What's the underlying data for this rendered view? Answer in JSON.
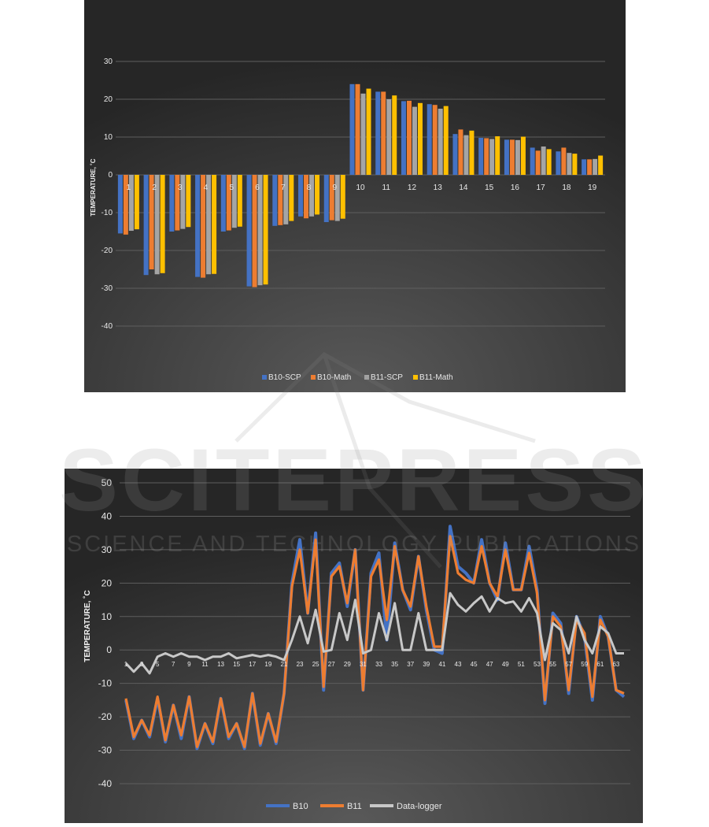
{
  "chart_data": [
    {
      "type": "bar",
      "ylabel": "TEMPERATURE, ˚C",
      "ylim": [
        -50,
        30
      ],
      "yticks": [
        30,
        20,
        10,
        0,
        -10,
        -20,
        -30,
        -40
      ],
      "categories": [
        "1",
        "2",
        "3",
        "4",
        "5",
        "6",
        "7",
        "8",
        "9",
        "10",
        "11",
        "12",
        "13",
        "14",
        "15",
        "16",
        "17",
        "18",
        "19"
      ],
      "series": [
        {
          "name": "B10-SCP",
          "color": "#4472c4",
          "values": [
            -15.5,
            -26.5,
            -15,
            -27,
            -15,
            -29.5,
            -13.5,
            -11,
            -12.5,
            24,
            22,
            19.5,
            18.7,
            10.8,
            9.8,
            9.3,
            7.2,
            6.2,
            4.1
          ]
        },
        {
          "name": "B10-Math",
          "color": "#ed7d31",
          "values": [
            -15.8,
            -25,
            -14.7,
            -27.2,
            -14.7,
            -29.7,
            -13.3,
            -11.5,
            -12,
            24,
            22,
            19.6,
            18.5,
            12,
            9.7,
            9.3,
            6.4,
            7.2,
            4.1
          ]
        },
        {
          "name": "B11-SCP",
          "color": "#a5a5a5",
          "values": [
            -14.8,
            -26.3,
            -14.3,
            -26.3,
            -14,
            -29.2,
            -13.1,
            -11,
            -12.2,
            21.5,
            20,
            18,
            17.5,
            10.5,
            9.5,
            9.2,
            7.5,
            5.8,
            4.2
          ]
        },
        {
          "name": "B11-Math",
          "color": "#ffc000",
          "values": [
            -14.4,
            -26,
            -13.8,
            -26.2,
            -13.7,
            -29,
            -12.2,
            -10.5,
            -11.6,
            22.8,
            21,
            19,
            18.2,
            11.7,
            10.2,
            10.1,
            6.8,
            5.6,
            5.1
          ]
        }
      ],
      "legend": "bottom"
    },
    {
      "type": "line",
      "ylabel": "TEMPERATURE, ˚C",
      "ylim": [
        -40,
        50
      ],
      "yticks": [
        50,
        40,
        30,
        20,
        10,
        0,
        -10,
        -20,
        -30,
        -40
      ],
      "x": [
        1,
        2,
        3,
        4,
        5,
        6,
        7,
        8,
        9,
        10,
        11,
        12,
        13,
        14,
        15,
        16,
        17,
        18,
        19,
        20,
        21,
        22,
        23,
        24,
        25,
        26,
        27,
        28,
        29,
        30,
        31,
        32,
        33,
        34,
        35,
        36,
        37,
        38,
        39,
        40,
        41,
        42,
        43,
        44,
        45,
        46,
        47,
        48,
        49,
        50,
        51,
        52,
        53,
        54,
        55,
        56,
        57,
        58,
        59,
        60,
        61,
        62,
        63,
        64
      ],
      "xtick_labels": [
        "1",
        "3",
        "5",
        "7",
        "9",
        "11",
        "13",
        "15",
        "17",
        "19",
        "21",
        "23",
        "25",
        "27",
        "29",
        "31",
        "33",
        "35",
        "37",
        "39",
        "41",
        "43",
        "45",
        "47",
        "49",
        "51",
        "53",
        "55",
        "57",
        "59",
        "61",
        "63"
      ],
      "series": [
        {
          "name": "B10",
          "color": "#4472c4",
          "values": [
            -15,
            -26.5,
            -21,
            -26,
            -14.5,
            -27.5,
            -16.5,
            -26.5,
            -14,
            -29.5,
            -22,
            -28,
            -14.5,
            -26.5,
            -22,
            -29.5,
            -13,
            -28.5,
            -19,
            -28,
            -13,
            20,
            33,
            11,
            35,
            -12,
            23,
            26,
            13,
            30,
            -12,
            23,
            29,
            3,
            32,
            18,
            12,
            28,
            12,
            0,
            -1,
            37,
            25,
            23,
            20,
            33,
            20,
            15,
            32,
            18,
            18,
            31,
            18,
            -16,
            11,
            8,
            -13,
            10,
            4,
            -15,
            10,
            4,
            -12,
            -14
          ]
        },
        {
          "name": "B11",
          "color": "#ed7d31",
          "values": [
            -14.5,
            -26,
            -21,
            -25.5,
            -14,
            -27,
            -16.5,
            -25.5,
            -14,
            -29,
            -22,
            -27.5,
            -14.5,
            -26,
            -22,
            -29,
            -13,
            -28,
            -19,
            -27.5,
            -13,
            19,
            30,
            11,
            33,
            -11,
            22,
            25,
            14,
            30,
            -12,
            22,
            27,
            9,
            31,
            18,
            13,
            28,
            13,
            1,
            1,
            34,
            23,
            21,
            20,
            31,
            20,
            16,
            30,
            18,
            18,
            29,
            17,
            -15,
            10,
            7,
            -12,
            9,
            5,
            -14,
            9,
            4,
            -12,
            -13
          ]
        },
        {
          "name": "Data-logger",
          "color": "#c8c8c8",
          "values": [
            -4,
            -6.5,
            -4,
            -7,
            -2,
            -1,
            -2,
            -1,
            -2,
            -2,
            -3,
            -2,
            -2,
            -1,
            -2.5,
            -2,
            -1.5,
            -2,
            -1.5,
            -2,
            -3,
            3,
            10,
            2,
            12,
            -0.5,
            0,
            11,
            3,
            15,
            -1,
            0,
            11,
            3,
            14,
            0,
            0,
            11,
            0,
            0,
            0,
            17,
            13.5,
            11.5,
            14,
            16,
            11.5,
            15.5,
            14,
            14.5,
            11.5,
            15.5,
            11,
            -3,
            8,
            6,
            -1,
            10,
            3,
            -1,
            7,
            5,
            -1,
            -1
          ]
        }
      ],
      "legend": "bottom"
    }
  ],
  "watermark": {
    "title": "SCITEPRESS",
    "subtitle": "SCIENCE AND TECHNOLOGY PUBLICATIONS"
  }
}
